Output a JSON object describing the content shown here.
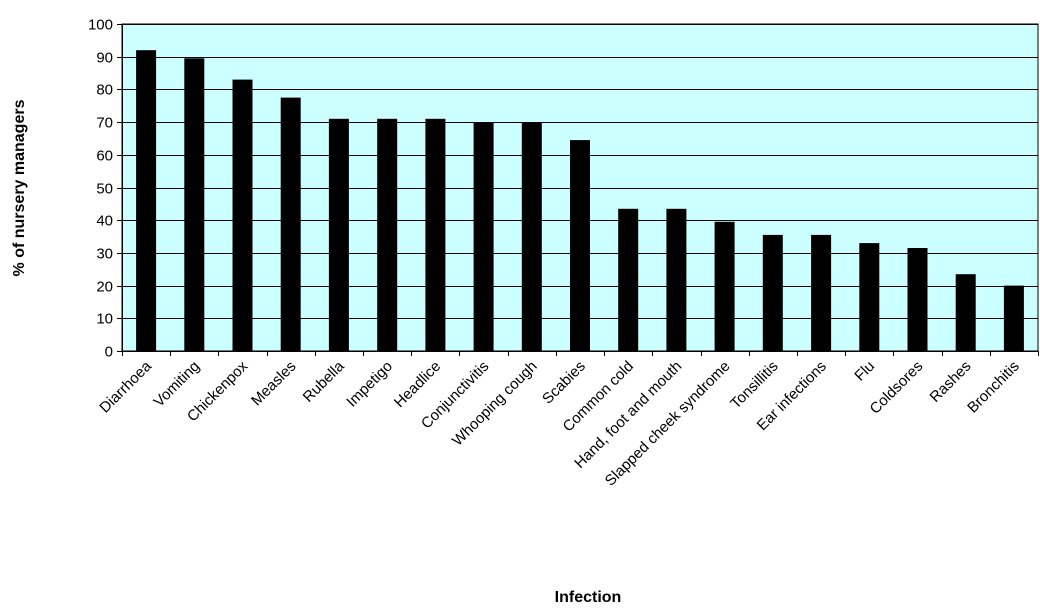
{
  "chart_data": {
    "type": "bar",
    "title": "",
    "xlabel": "Infection",
    "ylabel": "% of nursery managers",
    "ylim": [
      0,
      100
    ],
    "yticks": [
      0,
      10,
      20,
      30,
      40,
      50,
      60,
      70,
      80,
      90,
      100
    ],
    "grid": true,
    "legend": "none",
    "categories": [
      "Diarrhoea",
      "Vomiting",
      "Chickenpox",
      "Measles",
      "Rubella",
      "Impetigo",
      "Headlice",
      "Conjunctivitis",
      "Whooping cough",
      "Scabies",
      "Common cold",
      "Hand, foot and mouth",
      "Slapped cheek syndrome",
      "Tonsillitis",
      "Ear infections",
      "Flu",
      "Coldsores",
      "Rashes",
      "Bronchitis"
    ],
    "values": [
      92,
      89.5,
      83,
      77.5,
      71,
      71,
      71,
      70,
      70,
      64.5,
      43.5,
      43.5,
      39.5,
      35.5,
      35.5,
      33,
      31.5,
      23.5,
      20
    ],
    "colors": {
      "plot_background": "#ccffff",
      "bar": "#000000",
      "gridline": "#000000",
      "axis": "#000000"
    }
  }
}
